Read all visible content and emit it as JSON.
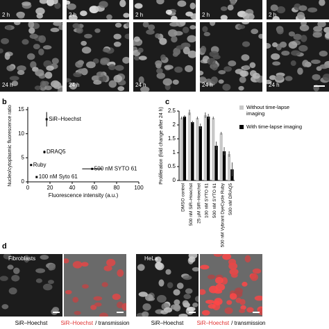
{
  "panel_labels": [
    "b",
    "c",
    "d"
  ],
  "top_images": {
    "row_labels": [
      "2 h",
      "24 h"
    ]
  },
  "bottom_images": {
    "cell_types": [
      "Fibroblasts",
      "HeLa"
    ],
    "stain": "SiR–Hoechst",
    "overlay_suffix": "/ transmission"
  },
  "chart_data": [
    {
      "type": "scatter",
      "x_label": "Fluorescence intensity (a.u.)",
      "y_label": "Nucleo/cytoplasmic fluorescence ratio",
      "xlim": [
        0,
        100
      ],
      "ylim": [
        0,
        15
      ],
      "xticks": [
        0,
        20,
        40,
        60,
        80,
        100
      ],
      "yticks": [
        0,
        5,
        10,
        15
      ],
      "labels": [
        "SiR–Hoechst",
        "DRAQ5",
        "Ruby",
        "100 nM Syto 61",
        "500 nM SYTO 61"
      ],
      "x": [
        17,
        15,
        3,
        8,
        58
      ],
      "values": [
        13,
        6.2,
        3.5,
        1,
        2.7
      ],
      "xerr": [
        0.5,
        1,
        0,
        0,
        9
      ],
      "yerr": [
        1.5,
        0.3,
        0,
        0,
        0.1
      ],
      "color": "#000000"
    },
    {
      "type": "bar",
      "y_label": "Proliferation (fold change after 24 h)",
      "ylim": [
        0,
        2.5
      ],
      "yticks": [
        0,
        0.5,
        1,
        1.5,
        2,
        2.5
      ],
      "categories": [
        "DMSO control",
        "500 nM SiR–Hoechst",
        "25 µM SiR–Hoechst",
        "100 nM SYTO 61",
        "500 nM SYTO 61",
        "500 nM Vybrant DyeCycle Ruby",
        "500 nM DRAQ5"
      ],
      "series": [
        {
          "name": "Without time-lapse imaging",
          "color": "#c8c8c8",
          "values": [
            2.25,
            2.45,
            2.25,
            2.35,
            2.25,
            1.7,
            0.95
          ],
          "errors": [
            0.05,
            0.1,
            0.05,
            0.1,
            0.05,
            0.05,
            0.1
          ]
        },
        {
          "name": "With time-lapse imaging",
          "color": "#000000",
          "values": [
            2.3,
            2.1,
            1.95,
            2.3,
            1.25,
            1.05,
            0.4
          ],
          "errors": [
            0.05,
            0.05,
            0.1,
            0.1,
            0.15,
            0.15,
            0.25
          ]
        }
      ]
    }
  ]
}
